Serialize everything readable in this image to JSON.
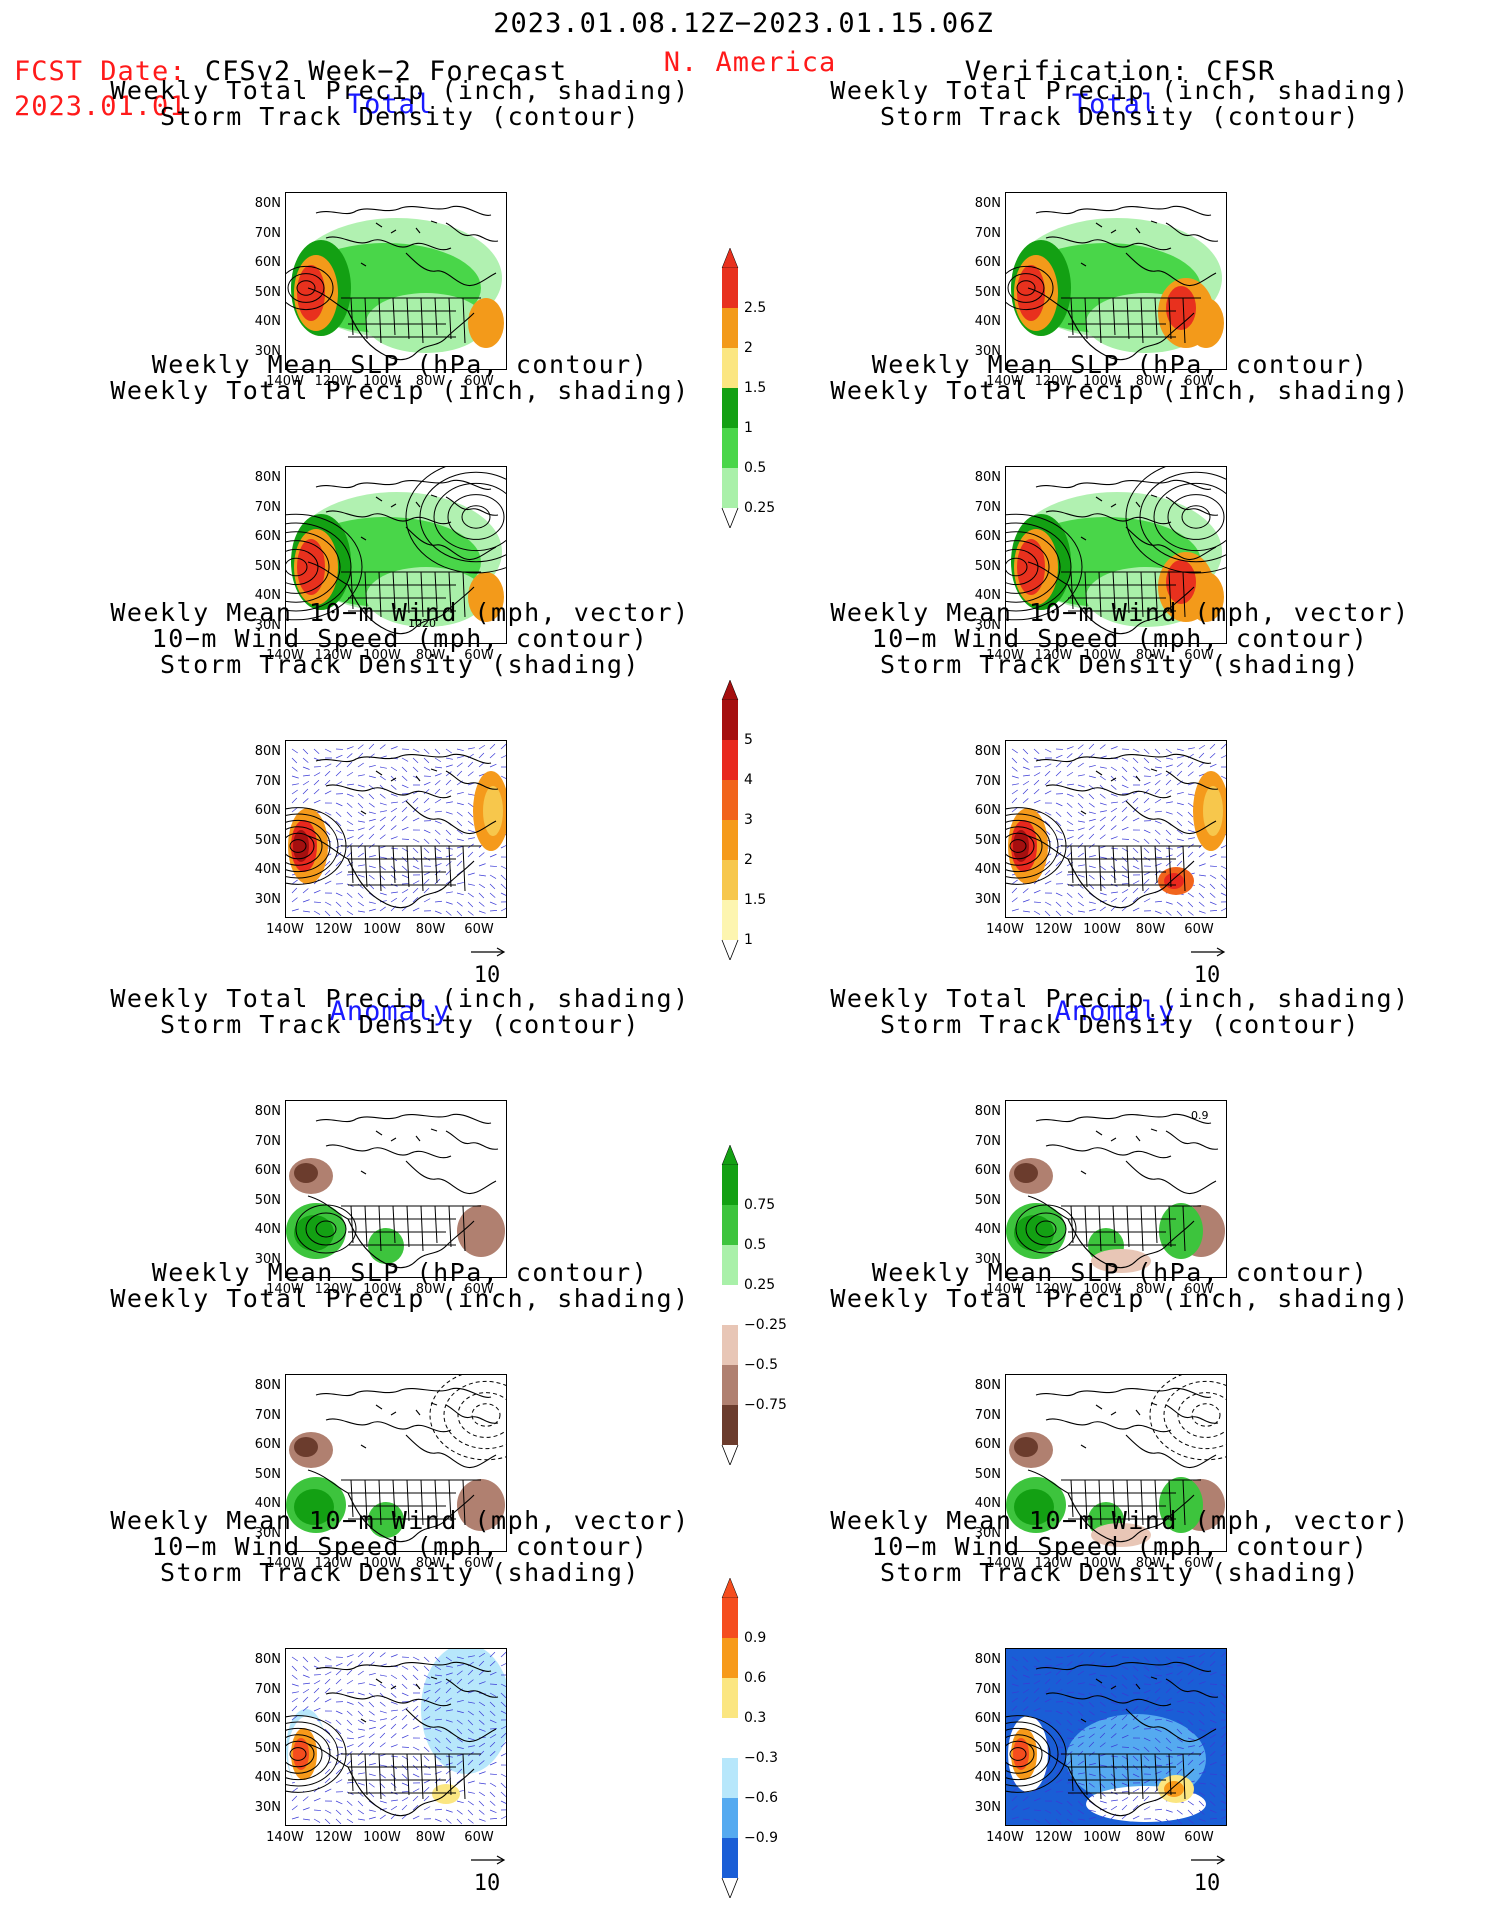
{
  "header": {
    "date_range": "2023.01.08.12Z−2023.01.15.06Z",
    "fcst_label": "FCST Date:",
    "fcst_date": "2023.01.01",
    "forecast_title": "CFSv2 Week−2 Forecast",
    "region": "N. America",
    "verification_title": "Verification: CFSR"
  },
  "sections": {
    "total": "Total",
    "anomaly": "Anomaly"
  },
  "titles": {
    "precip_storm": [
      "Weekly Total Precip (inch, shading)",
      "Storm Track Density (contour)"
    ],
    "slp_precip": [
      "Weekly Mean SLP (hPa, contour)",
      "Weekly Total Precip (inch, shading)"
    ],
    "wind_storm": [
      "Weekly Mean 10−m Wind (mph, vector)",
      "10−m Wind Speed (mph, contour)",
      "Storm Track Density (shading)"
    ]
  },
  "axes": {
    "lat_labels": [
      "80N",
      "70N",
      "60N",
      "50N",
      "40N",
      "30N"
    ],
    "lon_labels": [
      "140W",
      "120W",
      "100W",
      "80W",
      "60W"
    ]
  },
  "vector_scale": "10",
  "map_annotations": {
    "slp_contour_label": "1020",
    "anom_contour_label": "0.9"
  },
  "colorbars": {
    "precip_total": {
      "labels": [
        "2.5",
        "2",
        "1.5",
        "1",
        "0.5",
        "0.25"
      ],
      "colors": [
        "#e8311e",
        "#f39a1a",
        "#fbe681",
        "#13a013",
        "#49d649",
        "#a9f0a9"
      ]
    },
    "storm_total": {
      "labels": [
        "5",
        "4",
        "3",
        "2",
        "1.5",
        "1"
      ],
      "colors": [
        "#a50f0f",
        "#e8281e",
        "#f1641c",
        "#f59a1b",
        "#f7c74c",
        "#fdf5b0"
      ]
    },
    "precip_anom": {
      "labels": [
        "0.75",
        "0.5",
        "0.25",
        "−0.25",
        "−0.5",
        "−0.75"
      ],
      "colors": [
        "#13a013",
        "#3dc43d",
        "#a9f0a9",
        "#ffffff",
        "#e8c6b6",
        "#b08070",
        "#6b3c2d"
      ]
    },
    "storm_anom": {
      "labels": [
        "0.9",
        "0.6",
        "0.3",
        "−0.3",
        "−0.6",
        "−0.9"
      ],
      "colors": [
        "#f54d1e",
        "#f79a1a",
        "#fbe681",
        "#ffffff",
        "#b7e7fb",
        "#55aaf0",
        "#1a5ed6"
      ]
    }
  }
}
